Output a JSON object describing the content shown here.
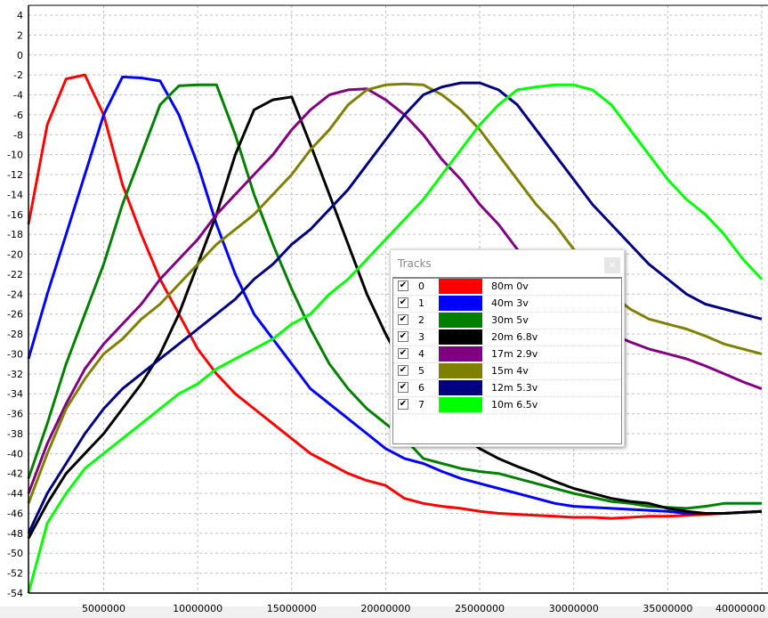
{
  "chart_data": {
    "type": "line",
    "title": "",
    "xlabel": "",
    "ylabel": "",
    "xlim": [
      1000000,
      40000000
    ],
    "ylim": [
      -54,
      4
    ],
    "grid": true,
    "x_ticks": [
      "5000000",
      "10000000",
      "15000000",
      "20000000",
      "25000000",
      "30000000",
      "35000000",
      "40000000"
    ],
    "x_tick_values": [
      5000000,
      10000000,
      15000000,
      20000000,
      25000000,
      30000000,
      35000000,
      40000000
    ],
    "y_ticks": [
      4,
      2,
      0,
      -2,
      -4,
      -6,
      -8,
      -10,
      -12,
      -14,
      -16,
      -18,
      -20,
      -22,
      -24,
      -26,
      -28,
      -30,
      -32,
      -34,
      -36,
      -38,
      -40,
      -42,
      -44,
      -46,
      -48,
      -50,
      -52,
      -54
    ],
    "x_mhz": [
      1,
      2,
      3,
      4,
      5,
      6,
      7,
      8,
      9,
      10,
      11,
      12,
      13,
      14,
      15,
      16,
      17,
      18,
      19,
      20,
      21,
      22,
      23,
      24,
      25,
      26,
      27,
      28,
      29,
      30,
      31,
      32,
      33,
      34,
      35,
      36,
      37,
      38,
      39,
      40
    ],
    "series": [
      {
        "name": "80m 0v",
        "color": "#ff0000",
        "values": [
          -17,
          -7,
          -2.4,
          -2,
          -6,
          -13,
          -18,
          -22.5,
          -26,
          -29.5,
          -32,
          -34,
          -35.5,
          -37,
          -38.5,
          -40,
          -41,
          -42,
          -42.7,
          -43.2,
          -44.5,
          -45,
          -45.3,
          -45.5,
          -45.8,
          -46,
          -46.1,
          -46.2,
          -46.3,
          -46.4,
          -46.4,
          -46.5,
          -46.4,
          -46.3,
          -46.3,
          -46.2,
          -46.1,
          -46,
          -45.9,
          -45.8
        ]
      },
      {
        "name": "40m 3v",
        "color": "#0000ff",
        "values": [
          -30.5,
          -24,
          -18,
          -12,
          -6,
          -2.2,
          -2.3,
          -2.6,
          -6,
          -11,
          -17,
          -22,
          -26,
          -28.5,
          -31,
          -33.5,
          -35,
          -36.5,
          -38,
          -39.5,
          -40.5,
          -41,
          -41.8,
          -42.5,
          -43,
          -43.5,
          -44,
          -44.5,
          -45,
          -45.3,
          -45.4,
          -45.5,
          -45.6,
          -45.7,
          -45.8,
          -46,
          -46,
          -46,
          -45.9,
          -45.8
        ]
      },
      {
        "name": "30m 5v",
        "color": "#008000",
        "values": [
          -42.5,
          -37,
          -31,
          -26,
          -21,
          -15,
          -10,
          -5,
          -3.1,
          -3,
          -3,
          -8,
          -14,
          -19,
          -23.5,
          -27.5,
          -31,
          -33.5,
          -35.5,
          -37,
          -38.5,
          -40.5,
          -41,
          -41.5,
          -41.8,
          -42,
          -42.5,
          -43,
          -43.5,
          -44,
          -44.4,
          -44.8,
          -45,
          -45.3,
          -45.4,
          -45.5,
          -45.3,
          -45,
          -45,
          -45
        ]
      },
      {
        "name": "20m 6.8v",
        "color": "#000000",
        "values": [
          -48.5,
          -45,
          -42,
          -40,
          -38,
          -35.5,
          -33,
          -30,
          -26,
          -21,
          -16,
          -10,
          -5.5,
          -4.5,
          -4.2,
          -9,
          -14,
          -19,
          -24,
          -28,
          -31.5,
          -34,
          -36,
          -38,
          -39.5,
          -40.5,
          -41.3,
          -42,
          -42.8,
          -43.5,
          -44,
          -44.5,
          -44.8,
          -45,
          -45.5,
          -45.8,
          -46,
          -46,
          -45.9,
          -45.8
        ]
      },
      {
        "name": "17m 2.9v",
        "color": "#800080",
        "values": [
          -44,
          -39,
          -35,
          -31.5,
          -29,
          -27,
          -25,
          -22.5,
          -20.5,
          -18.5,
          -16,
          -14,
          -12,
          -10,
          -7.5,
          -5.5,
          -4,
          -3.5,
          -3.4,
          -4.5,
          -6,
          -8,
          -10.5,
          -12.5,
          -15,
          -17,
          -19.5,
          -21.5,
          -23.5,
          -25.5,
          -27,
          -28,
          -28.8,
          -29.5,
          -30,
          -30.5,
          -31.2,
          -32,
          -32.8,
          -33.5
        ]
      },
      {
        "name": "15m 4v",
        "color": "#808000",
        "values": [
          -45,
          -40,
          -35.5,
          -32.5,
          -30,
          -28.5,
          -26.5,
          -25,
          -23,
          -21,
          -19,
          -17.5,
          -16,
          -14,
          -12,
          -9.5,
          -7.5,
          -5,
          -3.5,
          -3,
          -2.9,
          -3,
          -4,
          -5.5,
          -7.5,
          -10,
          -12.5,
          -15,
          -17,
          -19.5,
          -22,
          -24,
          -25.5,
          -26.5,
          -27,
          -27.5,
          -28.2,
          -29,
          -29.5,
          -30
        ]
      },
      {
        "name": "12m 5.3v",
        "color": "#000080",
        "values": [
          -48,
          -44,
          -41,
          -38,
          -35.5,
          -33.5,
          -32,
          -30.5,
          -29,
          -27.5,
          -26,
          -24.5,
          -22.5,
          -21,
          -19,
          -17.5,
          -15.5,
          -13.5,
          -11,
          -8.5,
          -6,
          -4,
          -3.2,
          -2.8,
          -2.8,
          -3.5,
          -5,
          -7.5,
          -10,
          -12.5,
          -15,
          -17,
          -19,
          -21,
          -22.5,
          -24,
          -25,
          -25.5,
          -26,
          -26.5
        ]
      },
      {
        "name": "10m 6.5v",
        "color": "#00ff00",
        "values": [
          -54,
          -47,
          -44,
          -41.5,
          -40,
          -38.5,
          -37,
          -35.5,
          -34,
          -33,
          -31.5,
          -30.5,
          -29.5,
          -28.5,
          -27,
          -26,
          -24,
          -22.5,
          -20.5,
          -18.5,
          -16.5,
          -14.5,
          -12,
          -9.5,
          -7,
          -5,
          -3.5,
          -3.2,
          -3,
          -3,
          -3.5,
          -5,
          -7.5,
          -10,
          -12.5,
          -14.5,
          -16,
          -18,
          -20.5,
          -22.5
        ]
      }
    ]
  },
  "legend": {
    "title": "Tracks",
    "close": "×",
    "check": "✔",
    "items": [
      {
        "index": "0",
        "label": "80m 0v"
      },
      {
        "index": "1",
        "label": "40m 3v"
      },
      {
        "index": "2",
        "label": "30m 5v"
      },
      {
        "index": "3",
        "label": "20m 6.8v"
      },
      {
        "index": "4",
        "label": "17m 2.9v"
      },
      {
        "index": "5",
        "label": "15m 4v"
      },
      {
        "index": "6",
        "label": "12m 5.3v"
      },
      {
        "index": "7",
        "label": "10m 6.5v"
      }
    ]
  }
}
